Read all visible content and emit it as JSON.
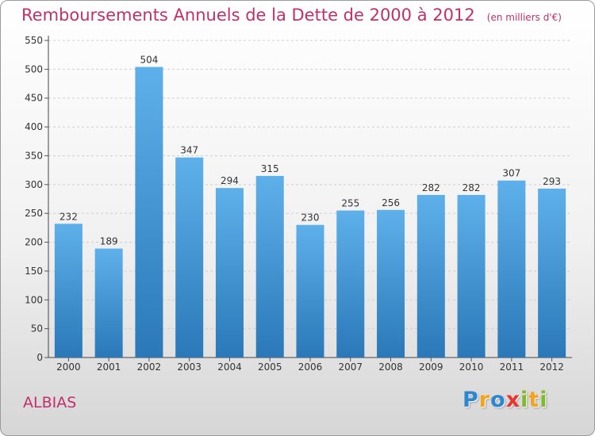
{
  "chart_data": {
    "type": "bar",
    "title": "Remboursements Annuels de la Dette de 2000 à 2012",
    "subtitle": "(en milliers d'€)",
    "categories": [
      "2000",
      "2001",
      "2002",
      "2003",
      "2004",
      "2005",
      "2006",
      "2007",
      "2008",
      "2009",
      "2010",
      "2011",
      "2012"
    ],
    "values": [
      232,
      189,
      504,
      347,
      294,
      315,
      230,
      255,
      256,
      282,
      282,
      307,
      293
    ],
    "ylim": [
      0,
      550
    ],
    "yticks": [
      0,
      50,
      100,
      150,
      200,
      250,
      300,
      350,
      400,
      450,
      500,
      550
    ],
    "grid": true,
    "bar_color_top": "#5eb0ea",
    "bar_color_bottom": "#2a78b8",
    "accent_color": "#c0306b"
  },
  "place": "ALBIAS",
  "logo": {
    "letters": [
      {
        "ch": "P",
        "color": "#2f86d0"
      },
      {
        "ch": "r",
        "color": "#f2a41c"
      },
      {
        "ch": "o",
        "color": "#2f86d0"
      },
      {
        "ch": "x",
        "color": "#e8352e"
      },
      {
        "ch": "i",
        "color": "#7dbb2a"
      },
      {
        "ch": "t",
        "color": "#f2a41c"
      },
      {
        "ch": "i",
        "color": "#7dbb2a"
      }
    ]
  }
}
